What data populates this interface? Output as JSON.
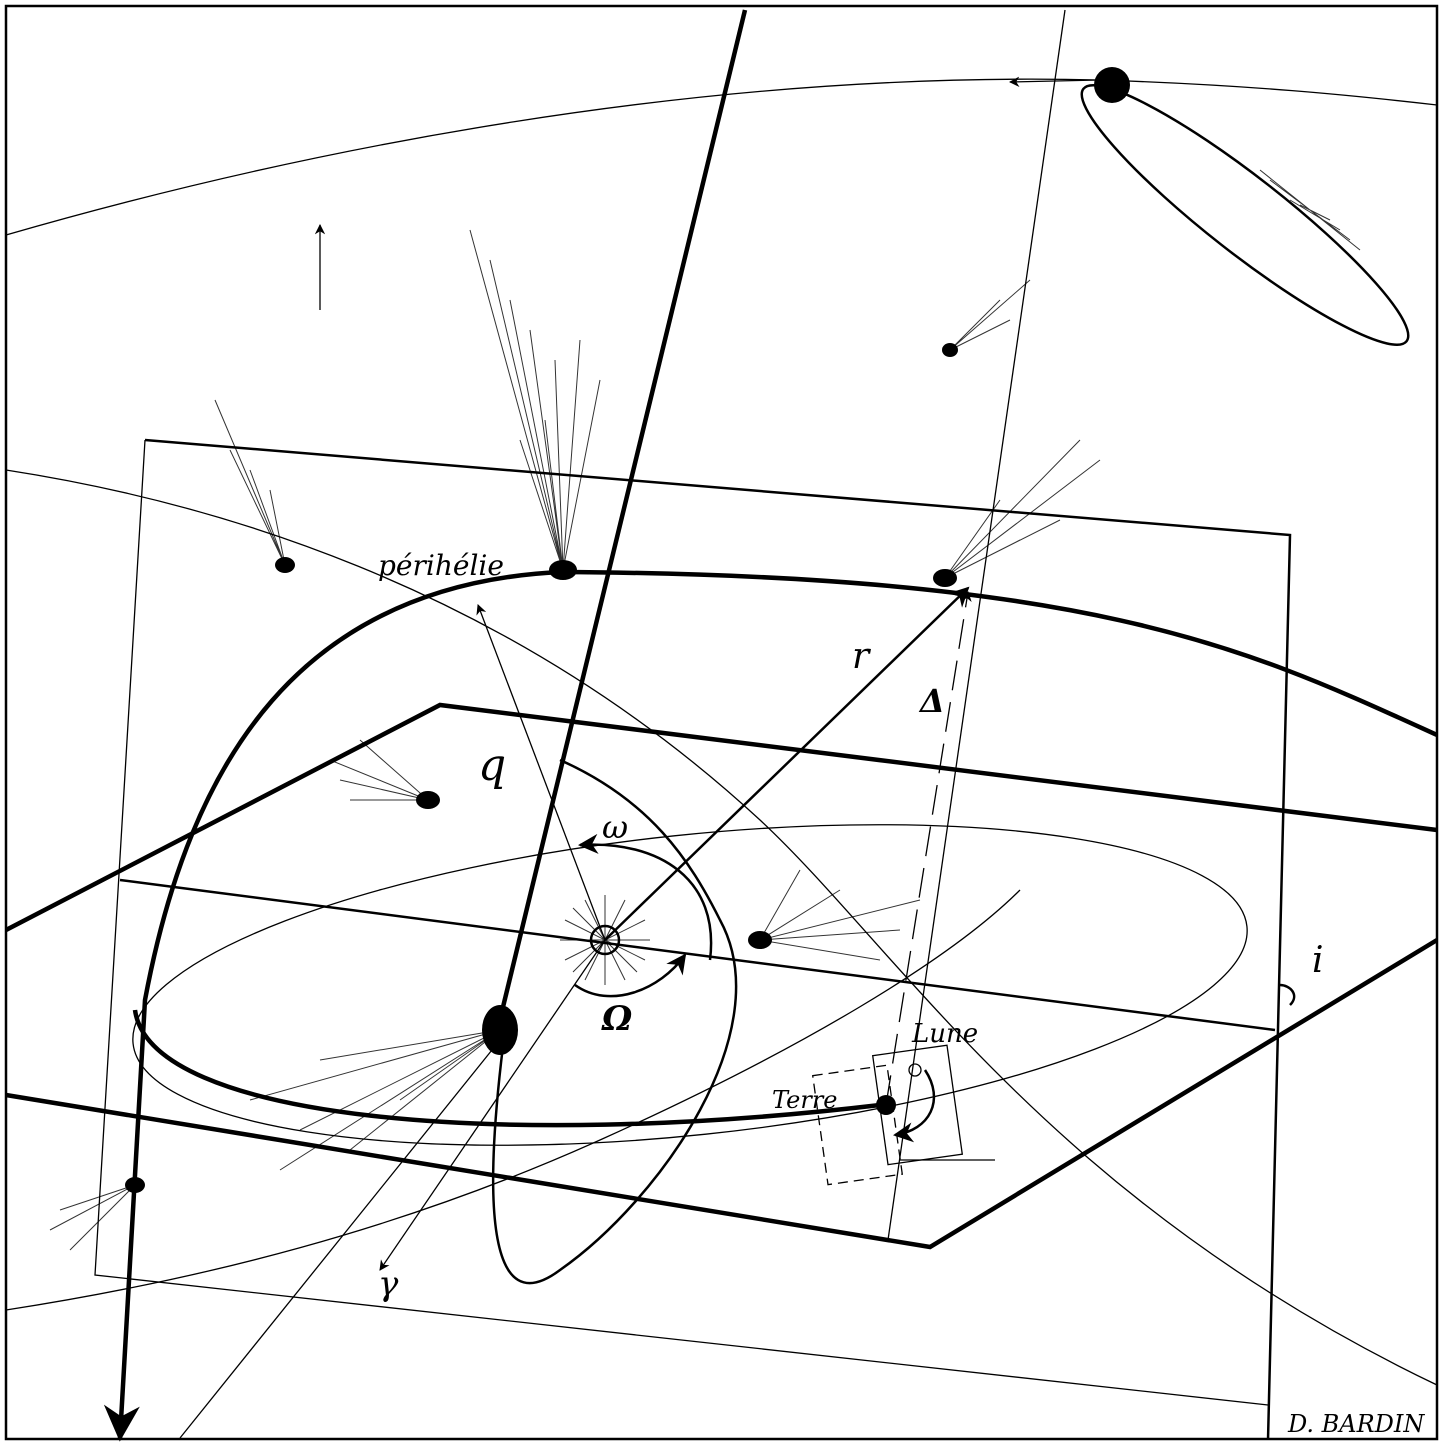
{
  "labels": {
    "perihelion": "périhélie",
    "q": "q",
    "omega": "ω",
    "r": "r",
    "delta": "Δ",
    "node": "Ω",
    "moon": "Lune",
    "earth": "Terre",
    "gamma": "γ",
    "inclination": "i",
    "signature": "D. BARDIN"
  }
}
